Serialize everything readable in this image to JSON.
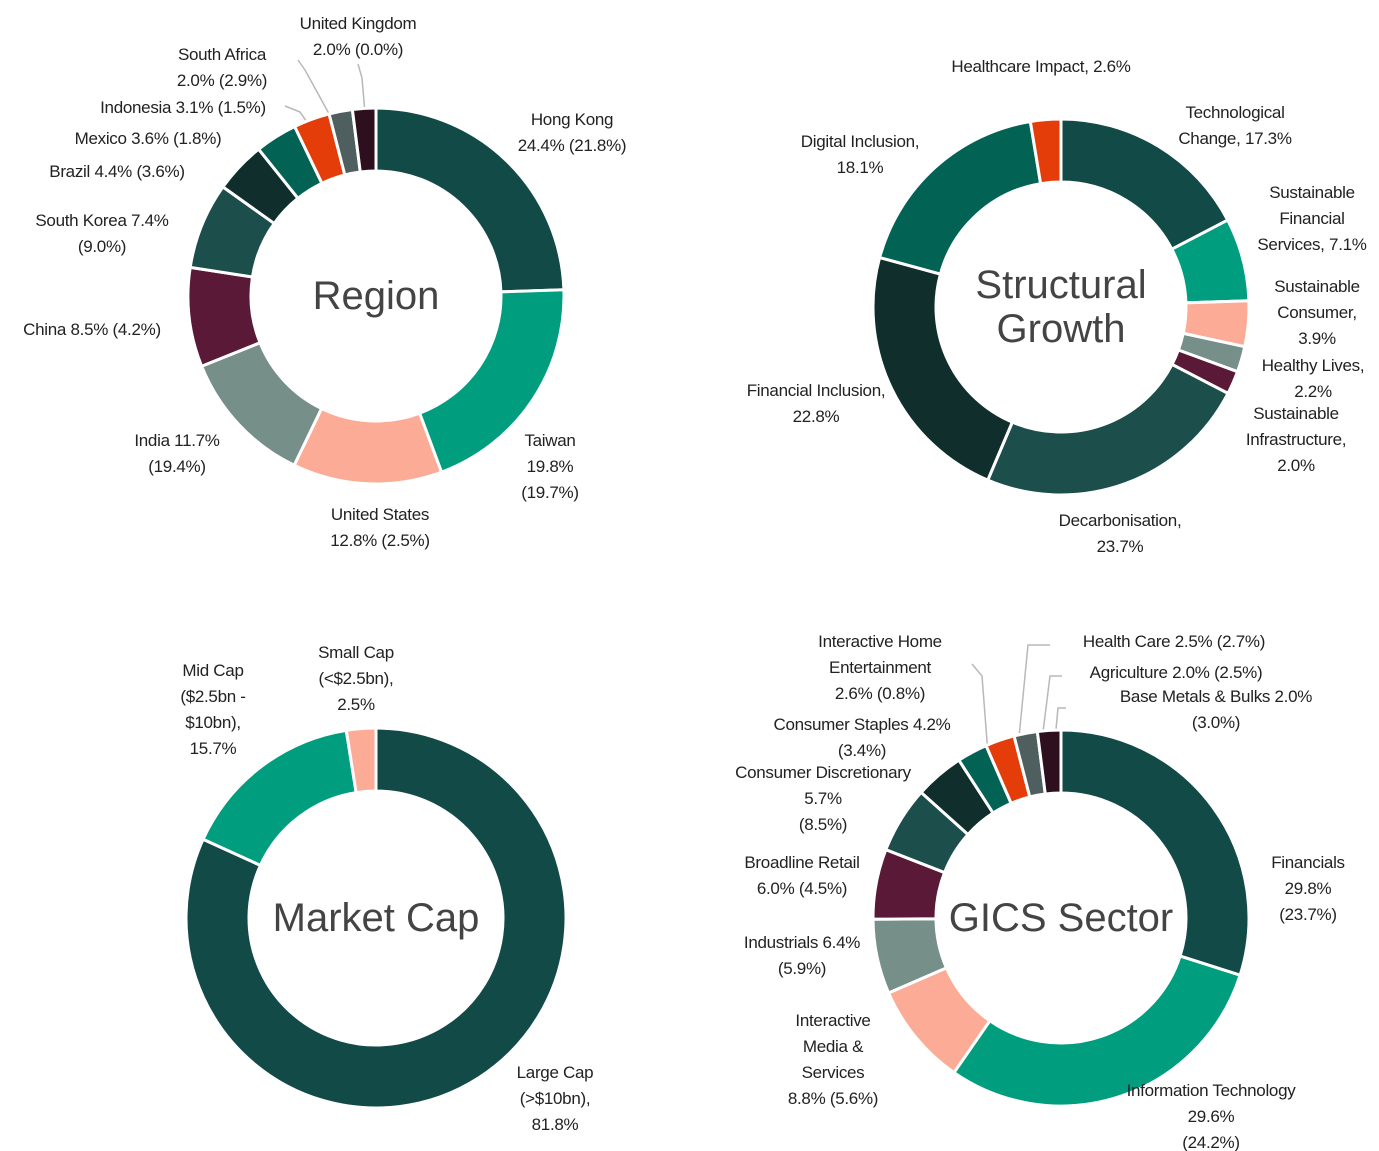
{
  "chart_data": [
    {
      "type": "pie",
      "title": "Region",
      "categories": [
        "Hong Kong",
        "Taiwan",
        "United States",
        "India",
        "China",
        "South Korea",
        "Brazil",
        "Mexico",
        "Indonesia",
        "South Africa",
        "United Kingdom"
      ],
      "values": [
        24.4,
        19.8,
        12.8,
        11.7,
        8.5,
        7.4,
        4.4,
        3.6,
        3.1,
        2.0,
        2.0
      ],
      "value_labels": [
        "24.4%",
        "19.8%",
        "12.8%",
        "11.7%",
        "8.5%",
        "7.4%",
        "4.4%",
        "3.6%",
        "3.1%",
        "2.0%",
        "2.0%"
      ],
      "benchmark_labels": [
        "(21.8%)",
        "(19.7%)",
        "(2.5%)",
        "(19.4%)",
        "(4.2%)",
        "(9.0%)",
        "(3.6%)",
        "(1.8%)",
        "(1.5%)",
        "(2.9%)",
        "(0.0%)"
      ],
      "colors": [
        "#124a48",
        "#009e7e",
        "#fbab96",
        "#778f89",
        "#5a1a37",
        "#1c4e4c",
        "#0f2e2c",
        "#026355",
        "#e43d0a",
        "#4f5e5f",
        "#2d0f1e"
      ]
    },
    {
      "type": "pie",
      "title": "Structural Growth",
      "categories": [
        "Technological Change,",
        "Sustainable Financial Services,",
        "Sustainable Consumer,",
        "Healthy Lives,",
        "Sustainable Infrastructure,",
        "Decarbonisation,",
        "Financial Inclusion,",
        "Digital Inclusion,",
        "Healthcare Impact,"
      ],
      "values": [
        17.3,
        7.1,
        3.9,
        2.2,
        2.0,
        23.7,
        22.8,
        18.1,
        2.6
      ],
      "value_labels": [
        "17.3%",
        "7.1%",
        "3.9%",
        "2.2%",
        "2.0%",
        "23.7%",
        "22.8%",
        "18.1%",
        "2.6%"
      ],
      "colors": [
        "#124a48",
        "#009e7e",
        "#fbab96",
        "#778f89",
        "#5a1a37",
        "#1c4e4c",
        "#0f2e2c",
        "#026355",
        "#e43d0a"
      ]
    },
    {
      "type": "pie",
      "title": "Market Cap",
      "categories": [
        "Large Cap (>$10bn),",
        "Mid Cap ($2.5bn - $10bn),",
        "Small Cap (<$2.5bn),"
      ],
      "values": [
        81.8,
        15.7,
        2.5
      ],
      "value_labels": [
        "81.8%",
        "15.7%",
        "2.5%"
      ],
      "colors": [
        "#124a48",
        "#009e7e",
        "#fbab96"
      ]
    },
    {
      "type": "pie",
      "title": "GICS Sector",
      "categories": [
        "Financials",
        "Information Technology",
        "Interactive Media & Services",
        "Industrials",
        "Broadline Retail",
        "Consumer Discretionary",
        "Consumer Staples",
        "Interactive Home Entertainment",
        "Health Care",
        "Agriculture",
        "Base Metals & Bulks"
      ],
      "values": [
        29.8,
        29.6,
        8.8,
        6.4,
        6.0,
        5.7,
        4.2,
        2.6,
        2.5,
        2.0,
        2.0
      ],
      "value_labels": [
        "29.8%",
        "29.6%",
        "8.8%",
        "6.4%",
        "6.0%",
        "5.7%",
        "4.2%",
        "2.6%",
        "2.5%",
        "2.0%",
        "2.0%"
      ],
      "benchmark_labels": [
        "(23.7%)",
        "(24.2%)",
        "(5.6%)",
        "(5.9%)",
        "(4.5%)",
        "(8.5%)",
        "(3.4%)",
        "(0.8%)",
        "(2.7%)",
        "(2.5%)",
        "(3.0%)"
      ],
      "colors": [
        "#124a48",
        "#009e7e",
        "#fbab96",
        "#778f89",
        "#5a1a37",
        "#1c4e4c",
        "#0f2e2c",
        "#026355",
        "#e43d0a",
        "#4f5e5f",
        "#2d0f1e"
      ]
    }
  ]
}
